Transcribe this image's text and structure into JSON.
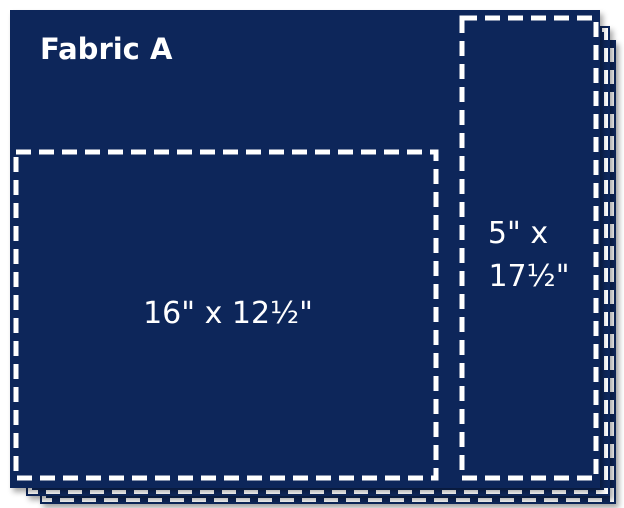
{
  "fabric": {
    "title": "Fabric A",
    "background_color": "#08285a",
    "dash_color": "#ffffff"
  },
  "cuts": [
    {
      "label": "16\" x 12½\""
    },
    {
      "label_line1": "5\" x",
      "label_line2": "17½\""
    }
  ]
}
